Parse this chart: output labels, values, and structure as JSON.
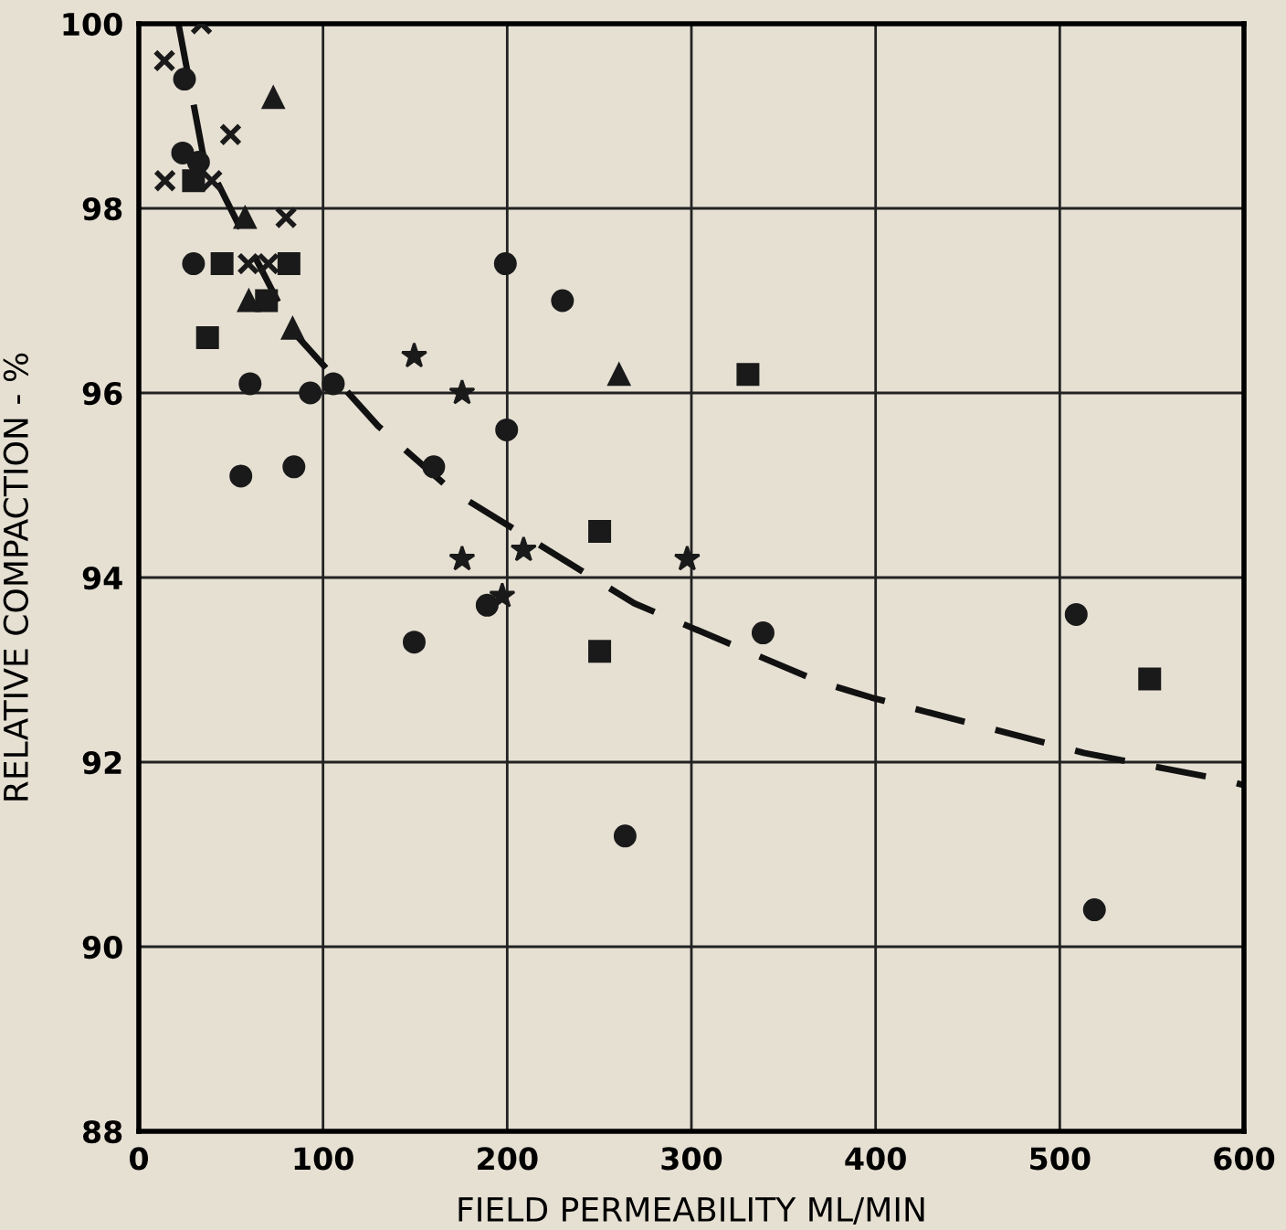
{
  "chart_data": {
    "type": "scatter",
    "xlabel": "FIELD PERMEABILITY ML/MIN",
    "ylabel": "RELATIVE COMPACTION - %",
    "xlim": [
      0,
      600
    ],
    "xticks": [
      0,
      100,
      200,
      300,
      400,
      500,
      600
    ],
    "ylim": [
      88,
      100
    ],
    "yticks": [
      88,
      90,
      92,
      94,
      96,
      98,
      100
    ],
    "grid": true,
    "legend": false,
    "series": [
      {
        "marker": "cross",
        "color": "#1a1a1a",
        "x": [
          34,
          13.9,
          49.8,
          14.2,
          39.6,
          79.9,
          59.4,
          70.3
        ],
        "values": [
          100,
          99.6,
          98.8,
          98.3,
          98.3,
          97.9,
          97.4,
          97.4
        ]
      },
      {
        "marker": "triangle",
        "color": "#1a1a1a",
        "x": [
          73,
          83.5
        ],
        "values": [
          99.2,
          96.7
        ]
      },
      {
        "marker": "triangle",
        "color": "#1a1a1a",
        "x": [
          57.7,
          59.7,
          260.7
        ],
        "values": [
          97.9,
          97.0,
          96.2
        ]
      },
      {
        "marker": "square",
        "color": "#1a1a1a",
        "x": [
          45.2,
          81.5,
          37.3,
          330.7
        ],
        "values": [
          97.4,
          97.4,
          96.6,
          96.2
        ]
      },
      {
        "marker": "square",
        "color": "#1a1a1a",
        "x": [
          29.7,
          69.3,
          250.2,
          250.2,
          548.8
        ],
        "values": [
          98.3,
          97.0,
          94.5,
          93.2,
          92.9
        ]
      },
      {
        "marker": "circle",
        "color": "#1a1a1a",
        "x": [
          24.8,
          23.8,
          32.4,
          93.1,
          105.6,
          29.7,
          60.4,
          84.2,
          160.1,
          199.7,
          189.1
        ],
        "values": [
          99.4,
          98.6,
          98.5,
          96.0,
          96.1,
          97.4,
          96.1,
          95.2,
          95.2,
          95.6,
          93.7
        ]
      },
      {
        "marker": "circle",
        "color": "#1a1a1a",
        "x": [
          199,
          230,
          508.9
        ],
        "values": [
          97.4,
          97.0,
          93.6
        ]
      },
      {
        "marker": "circle",
        "color": "#1a1a1a",
        "x": [
          55.4,
          149.5,
          264,
          338.9,
          518.8
        ],
        "values": [
          95.1,
          93.3,
          91.2,
          93.4,
          90.4
        ]
      },
      {
        "marker": "star",
        "color": "#1a1a1a",
        "x": [
          149.5,
          175.5,
          175.5,
          208.9,
          197.3,
          297.7
        ],
        "values": [
          96.4,
          96.0,
          94.2,
          94.3,
          93.8,
          94.2
        ]
      },
      {
        "type": "line",
        "line_style": "dashed",
        "marker": "none",
        "color": "#111111",
        "x": [
          21.5,
          34.7,
          56,
          84,
          130,
          170,
          269,
          369.6,
          397.7,
          513,
          590.8,
          600
        ],
        "values": [
          100,
          98.6,
          97.75,
          96.66,
          95.64,
          94.94,
          93.72,
          92.87,
          92.7,
          92.1,
          91.8,
          91.75
        ]
      }
    ]
  }
}
